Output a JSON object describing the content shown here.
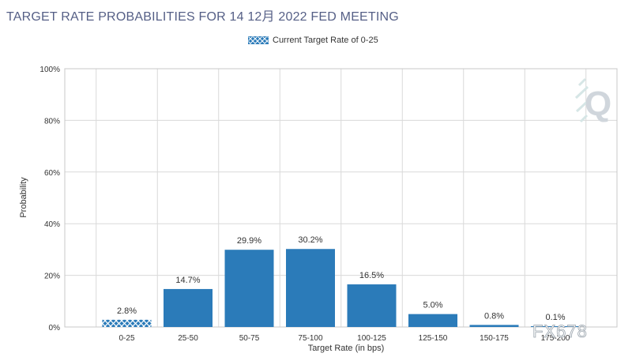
{
  "title": "TARGET RATE PROBABILITIES FOR 14 12月 2022 FED MEETING",
  "legend": {
    "label": "Current Target Rate of 0-25"
  },
  "watermark_text": "FX678",
  "colors": {
    "bar": "#2b7bb9",
    "current_bar": "#2b7bb9",
    "title": "#555f86",
    "grid": "#d9d9d9"
  },
  "chart_data": {
    "type": "bar",
    "title": "TARGET RATE PROBABILITIES FOR 14 12月 2022 FED MEETING",
    "xlabel": "Target Rate (in bps)",
    "ylabel": "Probability",
    "categories": [
      "0-25",
      "25-50",
      "50-75",
      "75-100",
      "100-125",
      "125-150",
      "150-175",
      "175-200"
    ],
    "values": [
      2.8,
      14.7,
      29.9,
      30.2,
      16.5,
      5.0,
      0.8,
      0.1
    ],
    "value_labels": [
      "2.8%",
      "14.7%",
      "29.9%",
      "30.2%",
      "16.5%",
      "5.0%",
      "0.8%",
      "0.1%"
    ],
    "current_category": "0-25",
    "ylim": [
      0,
      100
    ],
    "yticks": [
      "0%",
      "20%",
      "40%",
      "60%",
      "80%",
      "100%"
    ],
    "ytick_values": [
      0,
      20,
      40,
      60,
      80,
      100
    ],
    "grid": true,
    "legend_position": "top-center"
  }
}
